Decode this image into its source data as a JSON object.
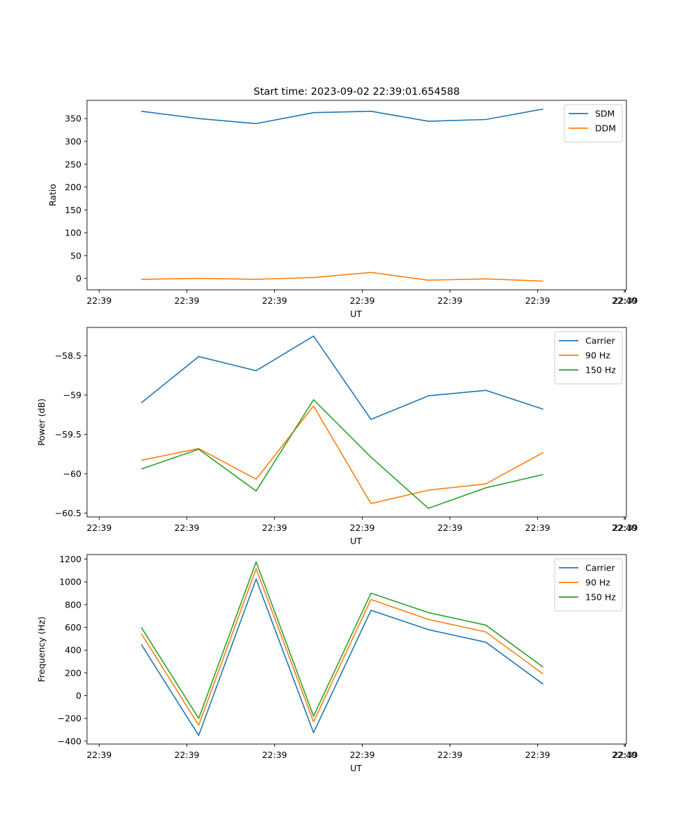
{
  "figure_title": "Start time: 2023-09-02 22:39:01.654588",
  "chart_data": [
    {
      "type": "line",
      "ylabel": "Ratio",
      "xlabel": "UT",
      "xtick_labels": [
        "22:39",
        "22:39",
        "22:39",
        "22:39",
        "22:39",
        "22:39",
        "22:39",
        "22:40"
      ],
      "ylim": [
        -25,
        390
      ],
      "yticks": [
        0,
        50,
        100,
        150,
        200,
        250,
        300,
        350
      ],
      "series": [
        {
          "name": "SDM",
          "color": "#1f77b4",
          "values": [
            366,
            350,
            339,
            363,
            366,
            344,
            348,
            371
          ]
        },
        {
          "name": "DDM",
          "color": "#ff7f0e",
          "values": [
            -2,
            0,
            -2,
            2,
            13,
            -4,
            -1,
            -6
          ]
        }
      ],
      "legend": "top-right"
    },
    {
      "type": "line",
      "ylabel": "Power (dB)",
      "xlabel": "UT",
      "xtick_labels": [
        "22:39",
        "22:39",
        "22:39",
        "22:39",
        "22:39",
        "22:39",
        "22:39",
        "22:40"
      ],
      "ylim": [
        -60.55,
        -58.14
      ],
      "yticks": [
        -60.5,
        -60.0,
        -59.5,
        -59.0,
        -58.5
      ],
      "series": [
        {
          "name": "Carrier",
          "color": "#1f77b4",
          "values": [
            -59.1,
            -58.51,
            -58.69,
            -58.25,
            -59.31,
            -59.01,
            -58.94,
            -59.18
          ]
        },
        {
          "name": "90 Hz",
          "color": "#ff7f0e",
          "values": [
            -59.83,
            -59.68,
            -60.07,
            -59.14,
            -60.38,
            -60.21,
            -60.13,
            -59.73
          ]
        },
        {
          "name": "150 Hz",
          "color": "#2ca02c",
          "values": [
            -59.94,
            -59.69,
            -60.22,
            -59.06,
            -59.79,
            -60.44,
            -60.18,
            -60.01
          ]
        }
      ],
      "legend": "top-right"
    },
    {
      "type": "line",
      "ylabel": "Frequency (Hz)",
      "xlabel": "UT",
      "xtick_labels": [
        "22:39",
        "22:39",
        "22:39",
        "22:39",
        "22:39",
        "22:39",
        "22:39",
        "22:40"
      ],
      "ylim": [
        -425,
        1240
      ],
      "yticks": [
        -400,
        -200,
        0,
        200,
        400,
        600,
        800,
        1000,
        1200
      ],
      "series": [
        {
          "name": "Carrier",
          "color": "#1f77b4",
          "values": [
            450,
            -350,
            1025,
            -325,
            750,
            580,
            470,
            100
          ]
        },
        {
          "name": "90 Hz",
          "color": "#ff7f0e",
          "values": [
            545,
            -260,
            1115,
            -230,
            845,
            670,
            560,
            190
          ]
        },
        {
          "name": "150 Hz",
          "color": "#2ca02c",
          "values": [
            600,
            -200,
            1175,
            -180,
            900,
            730,
            620,
            250
          ]
        }
      ],
      "legend": "top-right"
    }
  ]
}
